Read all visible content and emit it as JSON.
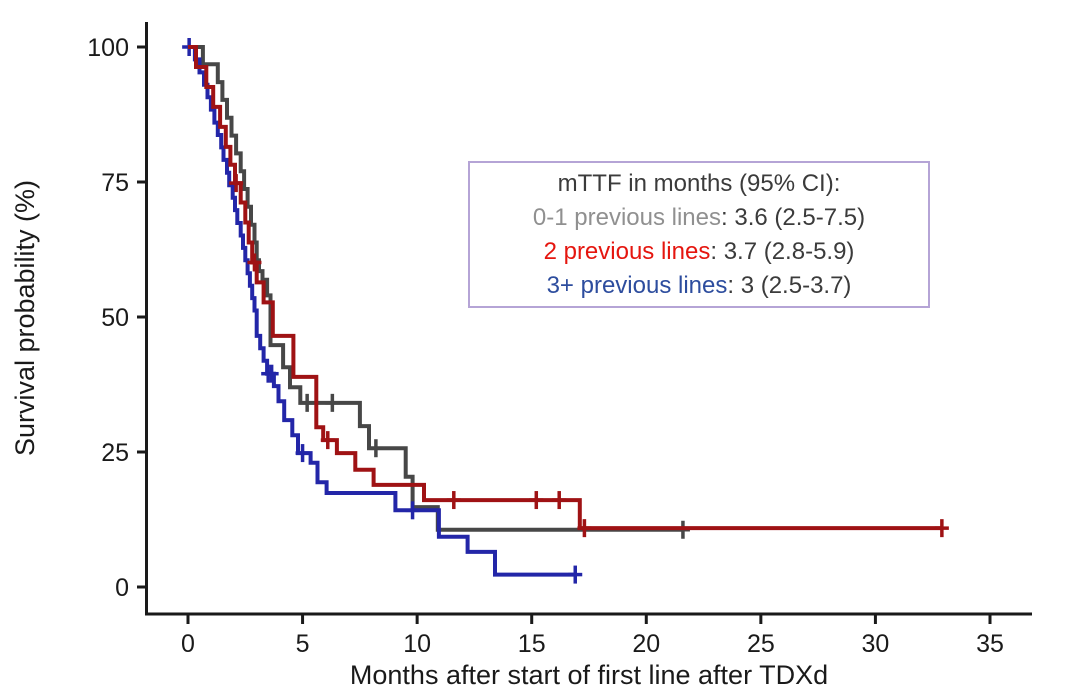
{
  "figure": {
    "background": "#ffffff"
  },
  "chart_data": {
    "type": "line",
    "subtype": "kaplan_meier_step_survival",
    "title": "",
    "xlabel": "Months after start of first line after TDXd",
    "ylabel": "Survival probability (%)",
    "xlim": [
      0,
      35
    ],
    "ylim": [
      0,
      100
    ],
    "xticks": [
      0,
      5,
      10,
      15,
      20,
      25,
      30,
      35
    ],
    "yticks": [
      0,
      25,
      50,
      75,
      100
    ],
    "grid": false,
    "axis_color": "#1a1a1a",
    "legend_position": "inside-upper-right",
    "legend": {
      "title": "mTTF in months (95% CI):",
      "separator": ": ",
      "border_color": "#b5a4d6",
      "entries": [
        {
          "label": "0-1 previous lines",
          "value": "3.6 (2.5-7.5)",
          "color": "#909090"
        },
        {
          "label": "2 previous lines",
          "value": "3.7 (2.8-5.9)",
          "color": "#e5160f"
        },
        {
          "label": "3+ previous lines",
          "value": "3 (2.5-3.7)",
          "color": "#2d4d9e"
        }
      ]
    },
    "series": [
      {
        "name": "0-1 previous lines",
        "color": "#474747",
        "median_months": "3.6",
        "ci": "2.5-7.5",
        "end_time": 21.6,
        "points": [
          [
            0,
            100
          ],
          [
            0.65,
            96.8
          ],
          [
            1.3,
            93.5
          ],
          [
            1.5,
            90.2
          ],
          [
            1.7,
            86.9
          ],
          [
            1.9,
            83.6
          ],
          [
            2.1,
            80.3
          ],
          [
            2.3,
            77.0
          ],
          [
            2.45,
            73.7
          ],
          [
            2.6,
            70.4
          ],
          [
            2.75,
            67.1
          ],
          [
            2.9,
            63.8
          ],
          [
            3.0,
            60.5
          ],
          [
            3.1,
            58.5
          ],
          [
            3.25,
            56.9
          ],
          [
            3.45,
            54.0
          ],
          [
            3.6,
            44.8
          ],
          [
            4.15,
            40.7
          ],
          [
            4.45,
            37.0
          ],
          [
            4.9,
            34.1
          ],
          [
            7.5,
            29.8
          ],
          [
            7.9,
            25.7
          ],
          [
            9.5,
            20.4
          ],
          [
            9.8,
            14.8
          ],
          [
            10.9,
            10.6
          ]
        ],
        "censors": [
          [
            5.2,
            34.1
          ],
          [
            6.3,
            34.1
          ],
          [
            8.2,
            25.7
          ],
          [
            21.6,
            10.6
          ]
        ]
      },
      {
        "name": "3+ previous lines",
        "color": "#2326a8",
        "median_months": "3",
        "ci": "2.5-3.7",
        "end_time": 16.9,
        "points": [
          [
            0,
            100
          ],
          [
            0.3,
            97.7
          ],
          [
            0.5,
            95.3
          ],
          [
            0.7,
            93.0
          ],
          [
            0.85,
            90.7
          ],
          [
            1.0,
            88.4
          ],
          [
            1.15,
            86.0
          ],
          [
            1.3,
            83.7
          ],
          [
            1.45,
            81.4
          ],
          [
            1.55,
            79.1
          ],
          [
            1.7,
            76.7
          ],
          [
            1.8,
            74.4
          ],
          [
            1.95,
            72.1
          ],
          [
            2.05,
            69.8
          ],
          [
            2.15,
            67.4
          ],
          [
            2.3,
            65.1
          ],
          [
            2.4,
            62.8
          ],
          [
            2.5,
            60.5
          ],
          [
            2.6,
            58.1
          ],
          [
            2.7,
            55.8
          ],
          [
            2.8,
            53.5
          ],
          [
            2.9,
            51.2
          ],
          [
            3.0,
            46.5
          ],
          [
            3.15,
            44.2
          ],
          [
            3.3,
            41.9
          ],
          [
            3.45,
            39.5
          ],
          [
            3.75,
            37.2
          ],
          [
            3.95,
            34.4
          ],
          [
            4.2,
            30.9
          ],
          [
            4.55,
            28.1
          ],
          [
            4.8,
            24.8
          ],
          [
            5.35,
            23.0
          ],
          [
            5.65,
            19.4
          ],
          [
            6.05,
            17.4
          ],
          [
            9.05,
            14.2
          ],
          [
            10.95,
            9.3
          ],
          [
            12.2,
            6.5
          ],
          [
            13.4,
            2.3
          ]
        ],
        "censors": [
          [
            0.05,
            100
          ],
          [
            3.5,
            39.5
          ],
          [
            3.65,
            39.5
          ],
          [
            5.0,
            24.8
          ],
          [
            9.8,
            14.2
          ],
          [
            16.9,
            2.3
          ]
        ]
      },
      {
        "name": "2 previous lines",
        "color": "#9f1214",
        "median_months": "3.7",
        "ci": "2.8-5.9",
        "end_time": 32.9,
        "points": [
          [
            0,
            100
          ],
          [
            0.35,
            96.3
          ],
          [
            0.8,
            92.6
          ],
          [
            1.1,
            88.9
          ],
          [
            1.4,
            85.2
          ],
          [
            1.65,
            81.5
          ],
          [
            1.85,
            78.2
          ],
          [
            2.05,
            74.8
          ],
          [
            2.3,
            71.2
          ],
          [
            2.5,
            67.5
          ],
          [
            2.65,
            63.8
          ],
          [
            2.8,
            60.1
          ],
          [
            3.0,
            56.4
          ],
          [
            3.3,
            52.7
          ],
          [
            3.7,
            46.5
          ],
          [
            4.6,
            38.9
          ],
          [
            5.6,
            29.6
          ],
          [
            5.9,
            27.2
          ],
          [
            6.5,
            24.8
          ],
          [
            7.3,
            21.7
          ],
          [
            8.1,
            18.9
          ],
          [
            10.3,
            16.1
          ],
          [
            17.1,
            10.9
          ]
        ],
        "censors": [
          [
            2.1,
            74.8
          ],
          [
            2.9,
            60.1
          ],
          [
            6.1,
            27.2
          ],
          [
            11.6,
            16.1
          ],
          [
            15.2,
            16.1
          ],
          [
            16.2,
            16.1
          ],
          [
            17.3,
            10.9
          ],
          [
            32.9,
            10.9
          ]
        ]
      }
    ]
  }
}
